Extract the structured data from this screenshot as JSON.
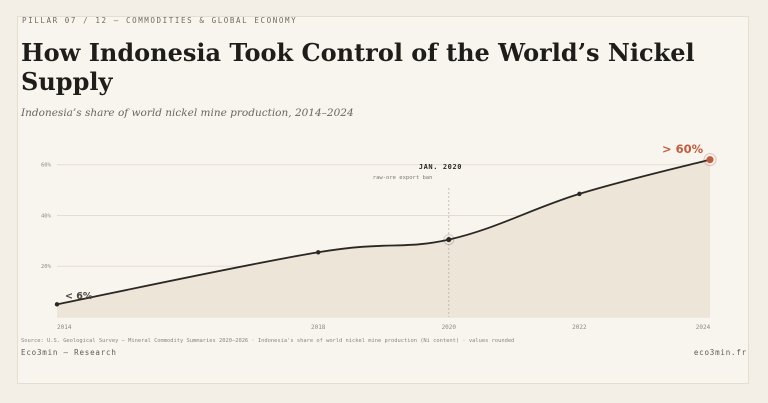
{
  "eyebrow": "PILLAR 07 / 12 — COMMODITIES & GLOBAL ECONOMY",
  "title": "How Indonesia Took Control of the World’s Nickel Supply",
  "subtitle": "Indonesia’s share of world nickel mine production, 2014–2024",
  "source": "Source: U.S. Geological Survey — Mineral Commodity Summaries 2020–2026 · Indonesia's share of world nickel mine production (Ni content) · values rounded",
  "footer": {
    "left": "Eco3min — Research",
    "right": "eco3min.fr"
  },
  "colors": {
    "line": "#2a2724",
    "area": "#ede5d8",
    "accent": "#c25a3c",
    "grid": "#e4ddd1"
  },
  "chart_data": {
    "type": "area",
    "x": [
      2014,
      2018,
      2020,
      2022,
      2024
    ],
    "values": [
      5,
      25.5,
      30.5,
      48.5,
      62
    ],
    "xlim": [
      2014,
      2024
    ],
    "ylim": [
      0,
      65
    ],
    "y_ticks": [
      20,
      40,
      60
    ],
    "y_tick_labels": [
      "20%",
      "40%",
      "60%"
    ],
    "x_tick_labels": [
      "2014",
      "2018",
      "2020",
      "2022",
      "2024"
    ],
    "grid": true,
    "annotations": {
      "start_label": "< 6%",
      "end_label": "> 60%",
      "event_x": 2020,
      "event_title": "JAN. 2020",
      "event_subtitle": "raw-ore export ban"
    }
  }
}
